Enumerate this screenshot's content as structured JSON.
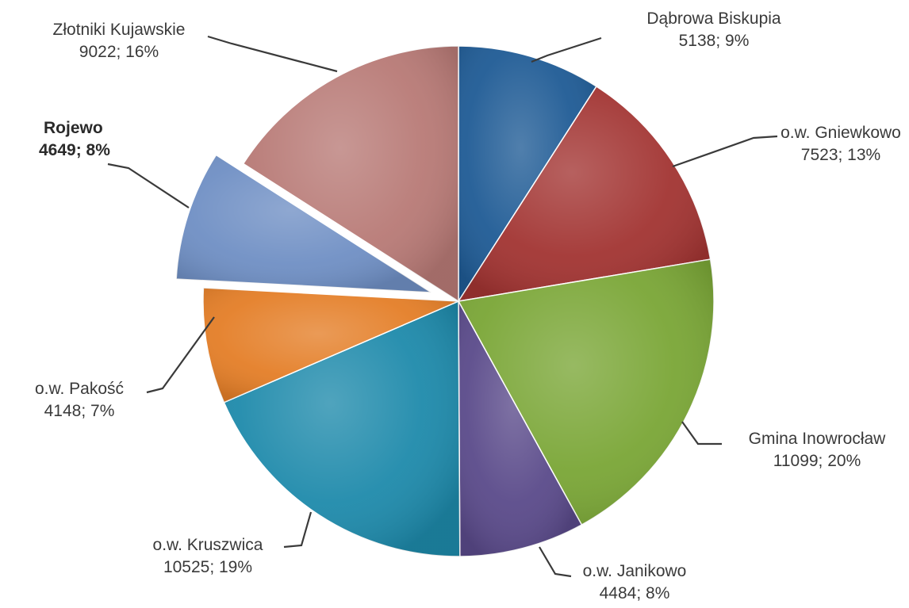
{
  "chart_data": {
    "type": "pie",
    "title": "",
    "legend": "none",
    "unit_note": "",
    "slices": [
      {
        "name": "Dąbrowa Biskupia",
        "value": 5138,
        "percent": 9,
        "label": "5138; 9%",
        "color": "#1f5b95",
        "exploded": false,
        "bold": false
      },
      {
        "name": "o.w. Gniewkowo",
        "value": 7523,
        "percent": 13,
        "label": "7523; 13%",
        "color": "#a23432",
        "exploded": false,
        "bold": false
      },
      {
        "name": "Gmina Inowrocław",
        "value": 11099,
        "percent": 20,
        "label": "11099; 20%",
        "color": "#7aa636",
        "exploded": false,
        "bold": false
      },
      {
        "name": "o.w. Janikowo",
        "value": 4484,
        "percent": 8,
        "label": "4484; 8%",
        "color": "#5a4a8a",
        "exploded": false,
        "bold": false
      },
      {
        "name": "o.w. Kruszwica",
        "value": 10525,
        "percent": 19,
        "label": "10525; 19%",
        "color": "#1e8aab",
        "exploded": false,
        "bold": false
      },
      {
        "name": "o.w. Pakość",
        "value": 4148,
        "percent": 7,
        "label": "4148; 7%",
        "color": "#e47e27",
        "exploded": false,
        "bold": false
      },
      {
        "name": "Rojewo",
        "value": 4649,
        "percent": 8,
        "label": "4649; 8%",
        "color": "#6f8fc4",
        "exploded": true,
        "bold": true
      },
      {
        "name": "Złotniki Kujawskie",
        "value": 9022,
        "percent": 16,
        "label": "9022; 16%",
        "color": "#b87a76",
        "exploded": false,
        "bold": false
      }
    ]
  }
}
